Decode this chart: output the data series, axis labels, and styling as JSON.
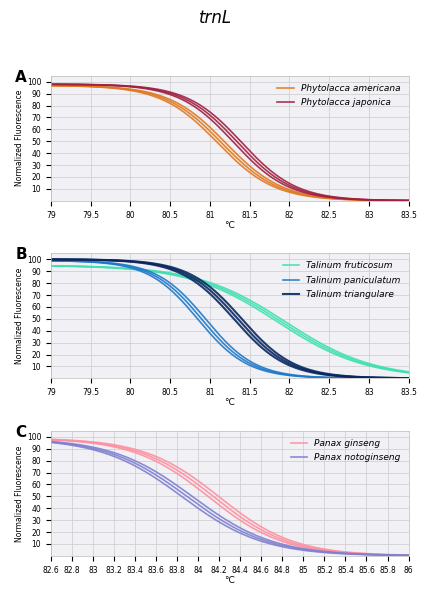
{
  "title": "trnL",
  "panels": [
    {
      "label": "A",
      "xlim": [
        79,
        83.5
      ],
      "xticks": [
        79,
        79.5,
        80,
        80.5,
        81,
        81.5,
        82,
        82.5,
        83,
        83.5
      ],
      "xtick_labels": [
        "79",
        "79.5",
        "80",
        "80.5",
        "81",
        "81.5",
        "82",
        "82.5",
        "83",
        "83.5"
      ],
      "series": [
        {
          "label": "Phytolacca americana",
          "color": "#E07820",
          "lw": 1.2,
          "curves": [
            {
              "tm": 81.1,
              "k": 2.8,
              "y0": 97
            },
            {
              "tm": 81.15,
              "k": 2.8,
              "y0": 97
            },
            {
              "tm": 81.2,
              "k": 2.8,
              "y0": 97
            }
          ]
        },
        {
          "label": "Phytolacca japonica",
          "color": "#A02040",
          "lw": 1.2,
          "curves": [
            {
              "tm": 81.3,
              "k": 2.9,
              "y0": 98
            },
            {
              "tm": 81.35,
              "k": 2.9,
              "y0": 98
            },
            {
              "tm": 81.4,
              "k": 2.9,
              "y0": 98
            }
          ]
        }
      ]
    },
    {
      "label": "B",
      "xlim": [
        79,
        83.5
      ],
      "xticks": [
        79,
        79.5,
        80,
        80.5,
        81,
        81.5,
        82,
        82.5,
        83,
        83.5
      ],
      "xtick_labels": [
        "79",
        "79.5",
        "80",
        "80.5",
        "81",
        "81.5",
        "82",
        "82.5",
        "83",
        "83.5"
      ],
      "series": [
        {
          "label": "Talinum fruticosum",
          "color": "#40E0B0",
          "lw": 1.2,
          "curves": [
            {
              "tm": 81.85,
              "k": 1.8,
              "y0": 95
            },
            {
              "tm": 81.9,
              "k": 1.8,
              "y0": 95
            },
            {
              "tm": 81.95,
              "k": 1.8,
              "y0": 95
            }
          ]
        },
        {
          "label": "Talinum paniculatum",
          "color": "#1E78C8",
          "lw": 1.2,
          "curves": [
            {
              "tm": 80.85,
              "k": 3.2,
              "y0": 99
            },
            {
              "tm": 80.9,
              "k": 3.2,
              "y0": 99
            },
            {
              "tm": 80.95,
              "k": 3.2,
              "y0": 99
            }
          ]
        },
        {
          "label": "Talinum triangulare",
          "color": "#0A2860",
          "lw": 1.5,
          "curves": [
            {
              "tm": 81.3,
              "k": 3.0,
              "y0": 100
            },
            {
              "tm": 81.35,
              "k": 3.0,
              "y0": 100
            },
            {
              "tm": 81.4,
              "k": 3.0,
              "y0": 100
            }
          ]
        }
      ]
    },
    {
      "label": "C",
      "xlim": [
        82.6,
        86.0
      ],
      "xticks": [
        82.6,
        82.8,
        83.0,
        83.2,
        83.4,
        83.6,
        83.8,
        84.0,
        84.2,
        84.4,
        84.6,
        84.8,
        85.0,
        85.2,
        85.4,
        85.6,
        85.8,
        86.0
      ],
      "xtick_labels": [
        "82.6",
        "82.8",
        "83",
        "83.2",
        "83.4",
        "83.6",
        "83.8",
        "84",
        "84.2",
        "84.4",
        "84.6",
        "84.8",
        "85",
        "85.2",
        "85.4",
        "85.6",
        "85.8",
        "86"
      ],
      "series": [
        {
          "label": "Panax ginseng",
          "color": "#FF8FA0",
          "lw": 1.2,
          "curves": [
            {
              "tm": 84.1,
              "k": 2.8,
              "y0": 99
            },
            {
              "tm": 84.15,
              "k": 2.8,
              "y0": 99
            },
            {
              "tm": 84.2,
              "k": 2.8,
              "y0": 99
            }
          ]
        },
        {
          "label": "Panax notoginseng",
          "color": "#8080D0",
          "lw": 1.2,
          "curves": [
            {
              "tm": 83.85,
              "k": 2.6,
              "y0": 99
            },
            {
              "tm": 83.9,
              "k": 2.6,
              "y0": 99
            },
            {
              "tm": 83.95,
              "k": 2.6,
              "y0": 99
            }
          ]
        }
      ]
    }
  ],
  "ylabel": "Normalized Fluorescence",
  "xlabel": "°C",
  "ylim": [
    0,
    105
  ],
  "yticks": [
    10,
    20,
    30,
    40,
    50,
    60,
    70,
    80,
    90,
    100
  ],
  "grid_color": "#cccccc",
  "bg_color": "#f0f0f5"
}
